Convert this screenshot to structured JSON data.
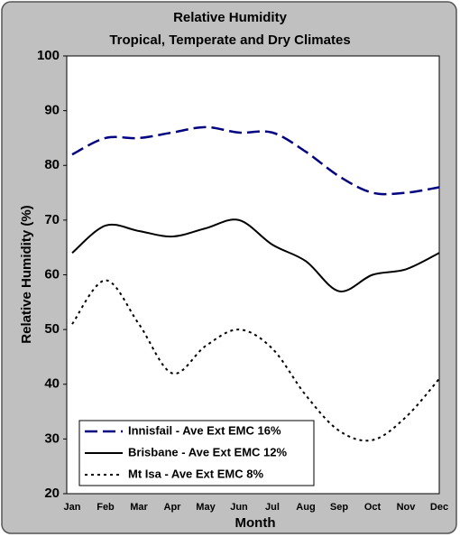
{
  "chart_data": {
    "type": "line",
    "title": "Relative Humidity",
    "subtitle": "Tropical, Temperate and Dry Climates",
    "x_label": "Month",
    "y_label": "Relative Humidity (%)",
    "categories": [
      "Jan",
      "Feb",
      "Mar",
      "Apr",
      "May",
      "Jun",
      "Jul",
      "Aug",
      "Sep",
      "Oct",
      "Nov",
      "Dec"
    ],
    "series": [
      {
        "name": "Innisfail - Ave Ext EMC 16%",
        "color": "#000080",
        "style": "dashed",
        "values": [
          82,
          85,
          85,
          86,
          87,
          86,
          86,
          82.5,
          78,
          75,
          75,
          76
        ]
      },
      {
        "name": "Brisbane - Ave Ext EMC 12%",
        "color": "#000000",
        "style": "solid",
        "values": [
          64,
          69,
          68,
          67,
          68.5,
          70,
          65.5,
          62.5,
          57,
          60,
          61,
          64
        ]
      },
      {
        "name": "Mt Isa - Ave Ext EMC 8%",
        "color": "#000000",
        "style": "dotted",
        "values": [
          51,
          59,
          51,
          42,
          47,
          50,
          46.5,
          38,
          31.5,
          29.8,
          34,
          41
        ]
      }
    ],
    "ylim": [
      20,
      100
    ],
    "yticks": [
      20,
      30,
      40,
      50,
      60,
      70,
      80,
      90,
      100
    ],
    "grid": false,
    "legend": "lower left"
  }
}
